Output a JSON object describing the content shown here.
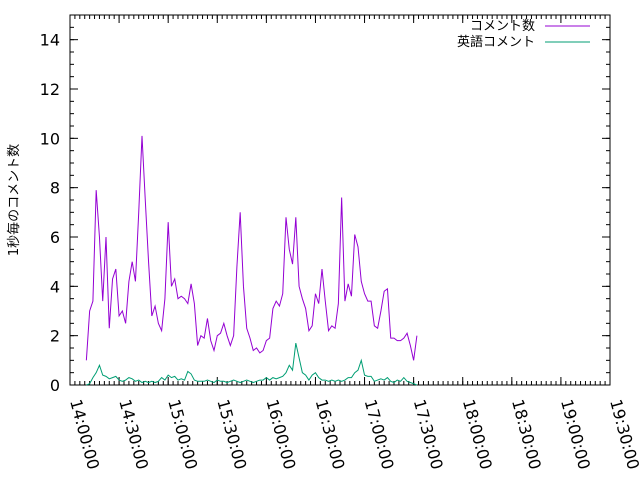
{
  "chart_data": {
    "type": "line",
    "title": "",
    "xlabel": "",
    "ylabel": "1秒毎のコメント数",
    "xlim": [
      "14:00:00",
      "19:30:00"
    ],
    "ylim": [
      0,
      15
    ],
    "x_ticks": [
      "14:00:00",
      "14:30:00",
      "15:00:00",
      "15:30:00",
      "16:00:00",
      "16:30:00",
      "17:00:00",
      "17:30:00",
      "18:00:00",
      "18:30:00",
      "19:00:00",
      "19:30:00"
    ],
    "y_ticks": [
      0,
      2,
      4,
      6,
      8,
      10,
      12,
      14
    ],
    "grid": false,
    "legend_position": "top-right",
    "series": [
      {
        "name": "コメント数",
        "color": "#9400d3",
        "points": [
          [
            "14:10:00",
            1.0
          ],
          [
            "14:12:00",
            3.0
          ],
          [
            "14:14:00",
            3.4
          ],
          [
            "14:16:00",
            7.9
          ],
          [
            "14:18:00",
            6.0
          ],
          [
            "14:20:00",
            3.4
          ],
          [
            "14:22:00",
            6.0
          ],
          [
            "14:24:00",
            2.3
          ],
          [
            "14:26:00",
            4.3
          ],
          [
            "14:28:00",
            4.7
          ],
          [
            "14:30:00",
            2.8
          ],
          [
            "14:32:00",
            3.0
          ],
          [
            "14:34:00",
            2.5
          ],
          [
            "14:36:00",
            4.2
          ],
          [
            "14:38:00",
            5.0
          ],
          [
            "14:40:00",
            4.2
          ],
          [
            "14:42:00",
            7.0
          ],
          [
            "14:44:00",
            10.1
          ],
          [
            "14:46:00",
            7.5
          ],
          [
            "14:48:00",
            5.0
          ],
          [
            "14:50:00",
            2.8
          ],
          [
            "14:52:00",
            3.2
          ],
          [
            "14:54:00",
            2.5
          ],
          [
            "14:56:00",
            2.2
          ],
          [
            "14:58:00",
            3.5
          ],
          [
            "15:00:00",
            6.6
          ],
          [
            "15:02:00",
            4.0
          ],
          [
            "15:04:00",
            4.3
          ],
          [
            "15:06:00",
            3.5
          ],
          [
            "15:08:00",
            3.6
          ],
          [
            "15:10:00",
            3.5
          ],
          [
            "15:12:00",
            3.3
          ],
          [
            "15:14:00",
            4.1
          ],
          [
            "15:16:00",
            3.3
          ],
          [
            "15:18:00",
            1.6
          ],
          [
            "15:20:00",
            2.0
          ],
          [
            "15:22:00",
            1.9
          ],
          [
            "15:24:00",
            2.7
          ],
          [
            "15:26:00",
            1.8
          ],
          [
            "15:28:00",
            1.4
          ],
          [
            "15:30:00",
            2.0
          ],
          [
            "15:32:00",
            2.1
          ],
          [
            "15:34:00",
            2.5
          ],
          [
            "15:36:00",
            2.0
          ],
          [
            "15:38:00",
            1.6
          ],
          [
            "15:40:00",
            2.0
          ],
          [
            "15:42:00",
            4.8
          ],
          [
            "15:44:00",
            7.0
          ],
          [
            "15:46:00",
            4.0
          ],
          [
            "15:48:00",
            2.3
          ],
          [
            "15:50:00",
            1.9
          ],
          [
            "15:52:00",
            1.4
          ],
          [
            "15:54:00",
            1.5
          ],
          [
            "15:56:00",
            1.3
          ],
          [
            "15:58:00",
            1.4
          ],
          [
            "16:00:00",
            1.8
          ],
          [
            "16:02:00",
            1.9
          ],
          [
            "16:04:00",
            3.1
          ],
          [
            "16:06:00",
            3.4
          ],
          [
            "16:08:00",
            3.2
          ],
          [
            "16:10:00",
            3.7
          ],
          [
            "16:12:00",
            6.8
          ],
          [
            "16:14:00",
            5.5
          ],
          [
            "16:16:00",
            4.9
          ],
          [
            "16:18:00",
            6.8
          ],
          [
            "16:20:00",
            4.0
          ],
          [
            "16:22:00",
            3.5
          ],
          [
            "16:24:00",
            3.1
          ],
          [
            "16:26:00",
            2.2
          ],
          [
            "16:28:00",
            2.4
          ],
          [
            "16:30:00",
            3.7
          ],
          [
            "16:32:00",
            3.3
          ],
          [
            "16:34:00",
            4.7
          ],
          [
            "16:36:00",
            3.4
          ],
          [
            "16:38:00",
            2.2
          ],
          [
            "16:40:00",
            2.4
          ],
          [
            "16:42:00",
            2.3
          ],
          [
            "16:44:00",
            3.3
          ],
          [
            "16:46:00",
            7.6
          ],
          [
            "16:48:00",
            3.4
          ],
          [
            "16:50:00",
            4.1
          ],
          [
            "16:52:00",
            3.6
          ],
          [
            "16:54:00",
            6.1
          ],
          [
            "16:56:00",
            5.6
          ],
          [
            "16:58:00",
            4.2
          ],
          [
            "17:00:00",
            3.7
          ],
          [
            "17:02:00",
            3.4
          ],
          [
            "17:04:00",
            3.4
          ],
          [
            "17:06:00",
            2.4
          ],
          [
            "17:08:00",
            2.3
          ],
          [
            "17:10:00",
            3.0
          ],
          [
            "17:12:00",
            3.8
          ],
          [
            "17:14:00",
            3.9
          ],
          [
            "17:16:00",
            1.9
          ],
          [
            "17:18:00",
            1.9
          ],
          [
            "17:20:00",
            1.8
          ],
          [
            "17:22:00",
            1.8
          ],
          [
            "17:24:00",
            1.9
          ],
          [
            "17:26:00",
            2.1
          ],
          [
            "17:28:00",
            1.6
          ],
          [
            "17:30:00",
            1.0
          ],
          [
            "17:32:00",
            2.0
          ]
        ]
      },
      {
        "name": "英語コメント",
        "color": "#009e73",
        "points": [
          [
            "14:10:00",
            0.0
          ],
          [
            "14:12:00",
            0.05
          ],
          [
            "14:14:00",
            0.3
          ],
          [
            "14:16:00",
            0.5
          ],
          [
            "14:18:00",
            0.8
          ],
          [
            "14:20:00",
            0.4
          ],
          [
            "14:22:00",
            0.35
          ],
          [
            "14:24:00",
            0.25
          ],
          [
            "14:26:00",
            0.3
          ],
          [
            "14:28:00",
            0.35
          ],
          [
            "14:30:00",
            0.2
          ],
          [
            "14:32:00",
            0.15
          ],
          [
            "14:34:00",
            0.2
          ],
          [
            "14:36:00",
            0.3
          ],
          [
            "14:38:00",
            0.25
          ],
          [
            "14:40:00",
            0.15
          ],
          [
            "14:42:00",
            0.2
          ],
          [
            "14:44:00",
            0.1
          ],
          [
            "14:46:00",
            0.15
          ],
          [
            "14:48:00",
            0.1
          ],
          [
            "14:50:00",
            0.15
          ],
          [
            "14:52:00",
            0.1
          ],
          [
            "14:54:00",
            0.15
          ],
          [
            "14:56:00",
            0.3
          ],
          [
            "14:58:00",
            0.2
          ],
          [
            "15:00:00",
            0.4
          ],
          [
            "15:02:00",
            0.3
          ],
          [
            "15:04:00",
            0.35
          ],
          [
            "15:06:00",
            0.2
          ],
          [
            "15:08:00",
            0.25
          ],
          [
            "15:10:00",
            0.2
          ],
          [
            "15:12:00",
            0.55
          ],
          [
            "15:14:00",
            0.45
          ],
          [
            "15:16:00",
            0.2
          ],
          [
            "15:18:00",
            0.15
          ],
          [
            "15:20:00",
            0.15
          ],
          [
            "15:22:00",
            0.15
          ],
          [
            "15:24:00",
            0.2
          ],
          [
            "15:26:00",
            0.15
          ],
          [
            "15:28:00",
            0.1
          ],
          [
            "15:30:00",
            0.2
          ],
          [
            "15:32:00",
            0.15
          ],
          [
            "15:34:00",
            0.15
          ],
          [
            "15:36:00",
            0.1
          ],
          [
            "15:38:00",
            0.15
          ],
          [
            "15:40:00",
            0.2
          ],
          [
            "15:42:00",
            0.15
          ],
          [
            "15:44:00",
            0.1
          ],
          [
            "15:46:00",
            0.15
          ],
          [
            "15:48:00",
            0.2
          ],
          [
            "15:50:00",
            0.15
          ],
          [
            "15:52:00",
            0.1
          ],
          [
            "15:54:00",
            0.15
          ],
          [
            "15:56:00",
            0.2
          ],
          [
            "15:58:00",
            0.2
          ],
          [
            "16:00:00",
            0.3
          ],
          [
            "16:02:00",
            0.2
          ],
          [
            "16:04:00",
            0.3
          ],
          [
            "16:06:00",
            0.25
          ],
          [
            "16:08:00",
            0.3
          ],
          [
            "16:10:00",
            0.35
          ],
          [
            "16:12:00",
            0.5
          ],
          [
            "16:14:00",
            0.8
          ],
          [
            "16:16:00",
            0.6
          ],
          [
            "16:18:00",
            1.7
          ],
          [
            "16:20:00",
            1.1
          ],
          [
            "16:22:00",
            0.5
          ],
          [
            "16:24:00",
            0.4
          ],
          [
            "16:26:00",
            0.2
          ],
          [
            "16:28:00",
            0.4
          ],
          [
            "16:30:00",
            0.5
          ],
          [
            "16:32:00",
            0.3
          ],
          [
            "16:34:00",
            0.2
          ],
          [
            "16:36:00",
            0.2
          ],
          [
            "16:38:00",
            0.15
          ],
          [
            "16:40:00",
            0.2
          ],
          [
            "16:42:00",
            0.15
          ],
          [
            "16:44:00",
            0.2
          ],
          [
            "16:46:00",
            0.15
          ],
          [
            "16:48:00",
            0.2
          ],
          [
            "16:50:00",
            0.3
          ],
          [
            "16:52:00",
            0.3
          ],
          [
            "16:54:00",
            0.5
          ],
          [
            "16:56:00",
            0.6
          ],
          [
            "16:58:00",
            1.0
          ],
          [
            "17:00:00",
            0.4
          ],
          [
            "17:02:00",
            0.35
          ],
          [
            "17:04:00",
            0.35
          ],
          [
            "17:06:00",
            0.15
          ],
          [
            "17:08:00",
            0.2
          ],
          [
            "17:10:00",
            0.25
          ],
          [
            "17:12:00",
            0.2
          ],
          [
            "17:14:00",
            0.3
          ],
          [
            "17:16:00",
            0.15
          ],
          [
            "17:18:00",
            0.1
          ],
          [
            "17:20:00",
            0.2
          ],
          [
            "17:22:00",
            0.15
          ],
          [
            "17:24:00",
            0.3
          ],
          [
            "17:26:00",
            0.15
          ],
          [
            "17:28:00",
            0.1
          ],
          [
            "17:30:00",
            0.05
          ],
          [
            "17:32:00",
            0.0
          ]
        ]
      }
    ]
  }
}
